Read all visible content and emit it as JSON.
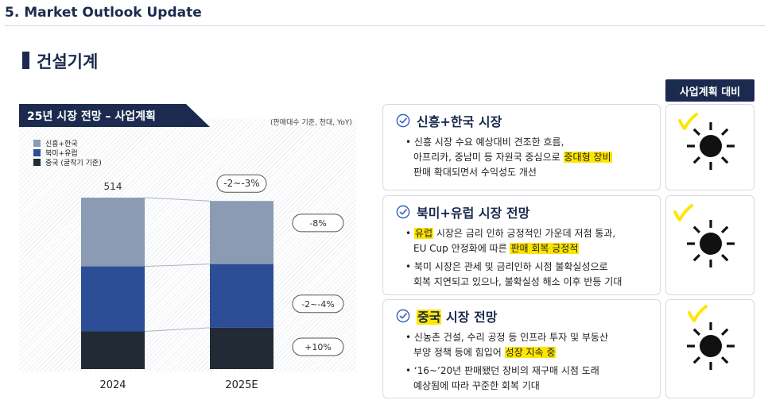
{
  "header": {
    "title": "5. Market Outlook Update"
  },
  "section": {
    "title": "건설기계"
  },
  "chart_panel": {
    "tab_label": "25년 시장 전망 – 사업계획",
    "note": "(판매대수 기준, 천대, YoY)"
  },
  "chart_data": {
    "type": "bar",
    "stacked": true,
    "categories": [
      "2024",
      "2025E"
    ],
    "series": [
      {
        "name": "신흥+한국",
        "color": "#8a9bb3",
        "values": [
          206,
          189
        ]
      },
      {
        "name": "북미+유럽",
        "color": "#2d4d96",
        "values": [
          195,
          191
        ]
      },
      {
        "name": "중국 (굴착기 기준)",
        "color": "#222a36",
        "values": [
          113,
          124
        ]
      }
    ],
    "data_labels": {
      "2024_total": "514",
      "2025E_total": "-2~-3%"
    },
    "yoy_labels": [
      "-8%",
      "-2~-4%",
      "+10%"
    ]
  },
  "cards": [
    {
      "title": "신흥+한국 시장",
      "bullets": [
        {
          "lines": [
            [
              {
                "t": "신흥 시장 수요 예상대비 견조한 흐름,"
              }
            ],
            [
              {
                "t": "아프리카, 중남미 등 자원국 중심으로 "
              },
              {
                "t": "중대형 장비",
                "hl": true
              }
            ],
            [
              {
                "t": "판매 확대되면서 수익성도 개선"
              }
            ]
          ]
        }
      ]
    },
    {
      "title": "북미+유럽 시장 전망",
      "bullets": [
        {
          "lines": [
            [
              {
                "t": "유럽",
                "hl": true
              },
              {
                "t": " 시장은 금리 인하 긍정적인 가운데 저점 통과,"
              }
            ],
            [
              {
                "t": "EU Cup 안정화에 따른 "
              },
              {
                "t": "판매 회복 긍정적",
                "hl": true
              }
            ]
          ]
        },
        {
          "lines": [
            [
              {
                "t": "북미 시장은 관세 및 금리인하 시점 불확실성으로"
              }
            ],
            [
              {
                "t": "회복 지연되고 있으나, 불확실성 해소 이후 반등 기대"
              }
            ]
          ]
        }
      ]
    },
    {
      "title": "중국 시장 전망",
      "title_hl": "중국",
      "bullets": [
        {
          "lines": [
            [
              {
                "t": "신농촌 건설, 수리 공정 등 인프라 투자 및 부동산"
              }
            ],
            [
              {
                "t": "부양 정책 등에 힘입어 "
              },
              {
                "t": "성장 지속 중",
                "hl": true
              }
            ]
          ]
        },
        {
          "lines": [
            [
              {
                "t": "‘16~’20년 판매됐던 장비의 재구매 시점 도래"
              }
            ],
            [
              {
                "t": "예상됨에 따라 꾸준한 회복 기대"
              }
            ]
          ]
        }
      ]
    }
  ],
  "evaluation": {
    "header": "사업계획 대비",
    "items": [
      {
        "icon": "sun-icon",
        "check": "check-mark"
      },
      {
        "icon": "sun-icon",
        "check": "check-mark"
      },
      {
        "icon": "sun-icon",
        "check": "check-mark"
      }
    ]
  },
  "colors": {
    "navy": "#1b2a4e",
    "highlight": "#ffe600",
    "check_blue": "#3a5fc4"
  }
}
